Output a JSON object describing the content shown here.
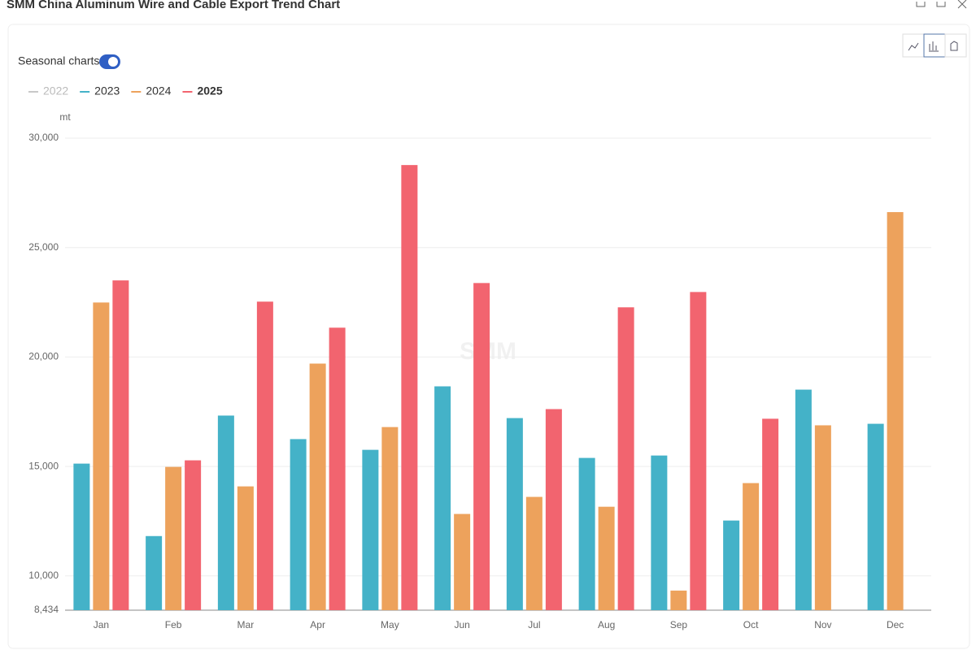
{
  "chart_data": {
    "type": "bar",
    "title": "SMM China Aluminum Wire and Cable Export Trend Chart",
    "toggle_label": "Seasonal charts",
    "y_unit": "mt",
    "watermark": "SMM",
    "categories": [
      "Jan",
      "Feb",
      "Mar",
      "Apr",
      "May",
      "Jun",
      "Jul",
      "Aug",
      "Sep",
      "Oct",
      "Nov",
      "Dec"
    ],
    "series": [
      {
        "name": "2022",
        "color": "#c8c8c8",
        "hidden": true,
        "values": [
          null,
          null,
          null,
          null,
          null,
          null,
          null,
          null,
          null,
          null,
          null,
          null
        ]
      },
      {
        "name": "2023",
        "color": "#44b2c8",
        "values": [
          15130,
          11820,
          17325,
          16250,
          15760,
          18660,
          17210,
          15390,
          15500,
          12530,
          18510,
          16950
        ]
      },
      {
        "name": "2024",
        "color": "#eda25c",
        "values": [
          22490,
          14980,
          14090,
          19700,
          16800,
          12830,
          13610,
          13160,
          9330,
          14240,
          16880,
          26620
        ]
      },
      {
        "name": "2025",
        "color": "#f2646f",
        "bold": true,
        "values": [
          23500,
          15280,
          22530,
          21340,
          28770,
          23380,
          17620,
          22270,
          22970,
          17180,
          null,
          null
        ]
      }
    ],
    "ylim": [
      8434,
      30000
    ],
    "yticks": [
      {
        "value": 8434,
        "label": "8,434"
      },
      {
        "value": 10000,
        "label": "10,000"
      },
      {
        "value": 15000,
        "label": "15,000"
      },
      {
        "value": 20000,
        "label": "20,000"
      },
      {
        "value": 25000,
        "label": "25,000"
      },
      {
        "value": 30000,
        "label": "30,000"
      }
    ],
    "grid": true
  }
}
